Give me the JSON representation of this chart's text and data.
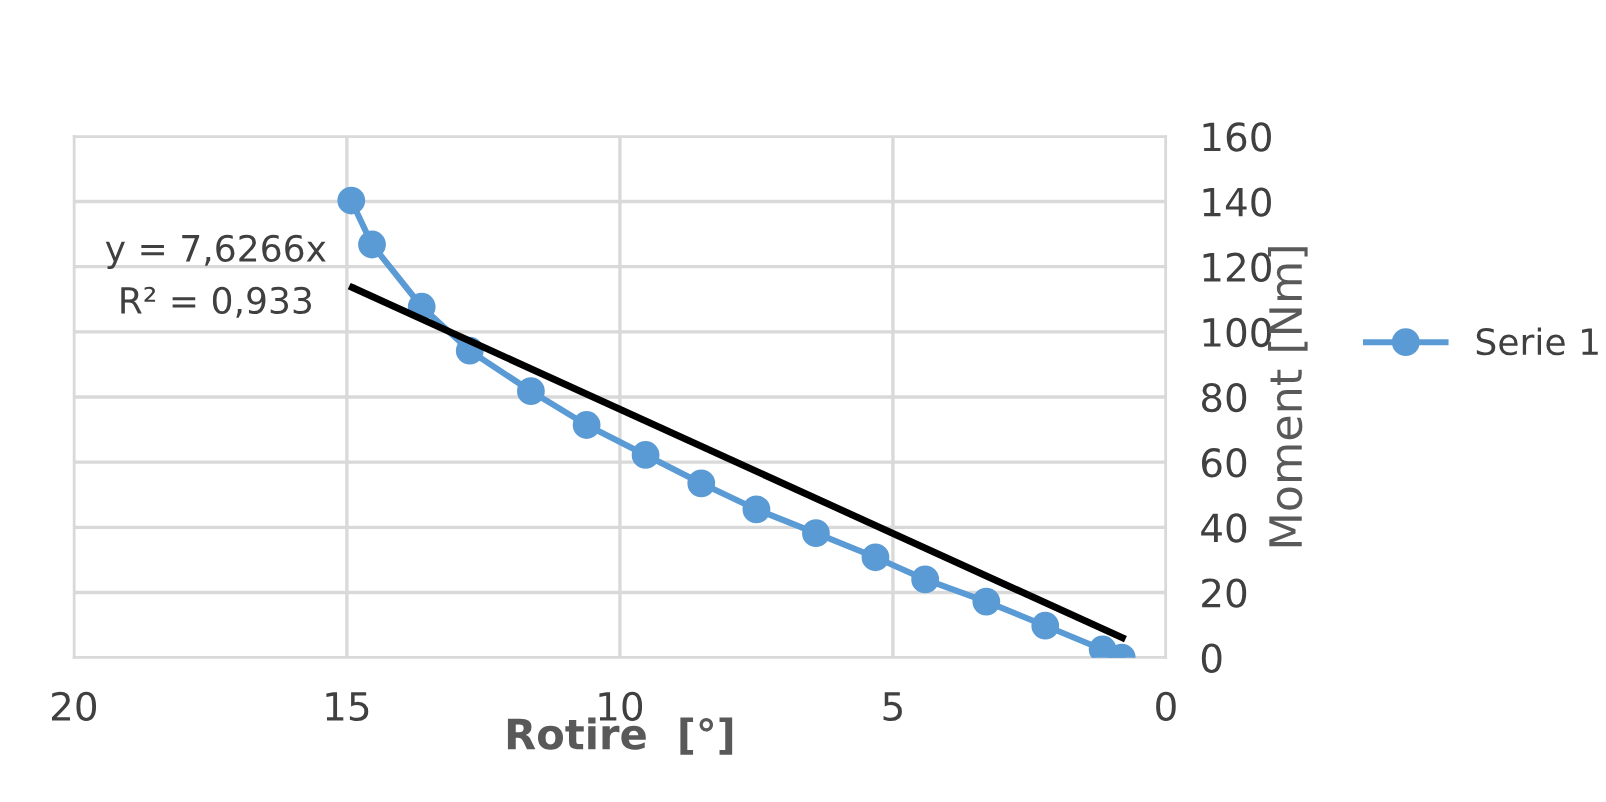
{
  "chart_data": {
    "type": "line",
    "xlabel": "Rotire  [°]",
    "ylabel": "Moment [Nm]",
    "xlim": [
      20,
      0
    ],
    "xticks": [
      20,
      15,
      10,
      5,
      0
    ],
    "ylim": [
      0,
      160
    ],
    "yticks": [
      0,
      20,
      40,
      60,
      80,
      100,
      120,
      140,
      160
    ],
    "grid": true,
    "legend": "right",
    "marker": "circle",
    "line_style": "solid",
    "series": [
      {
        "name": "Serie 1",
        "color": "#5b9bd5",
        "x": [
          14.92,
          14.54,
          13.63,
          12.75,
          11.63,
          10.61,
          9.53,
          8.51,
          7.5,
          6.41,
          5.32,
          4.41,
          3.29,
          2.21,
          1.16,
          0.81
        ],
        "values": [
          140.3,
          126.8,
          107.7,
          94.2,
          81.8,
          71.4,
          62.2,
          53.5,
          45.5,
          38.2,
          30.8,
          24.0,
          17.2,
          9.8,
          2.5,
          0
        ]
      },
      {
        "type": "line",
        "marker": "none",
        "color": "#000000",
        "x": [
          14.9,
          0.8
        ],
        "values": [
          113.6,
          6.1
        ]
      }
    ],
    "annotations": [
      "y = 7,6266x",
      "R² = 0,933"
    ]
  }
}
